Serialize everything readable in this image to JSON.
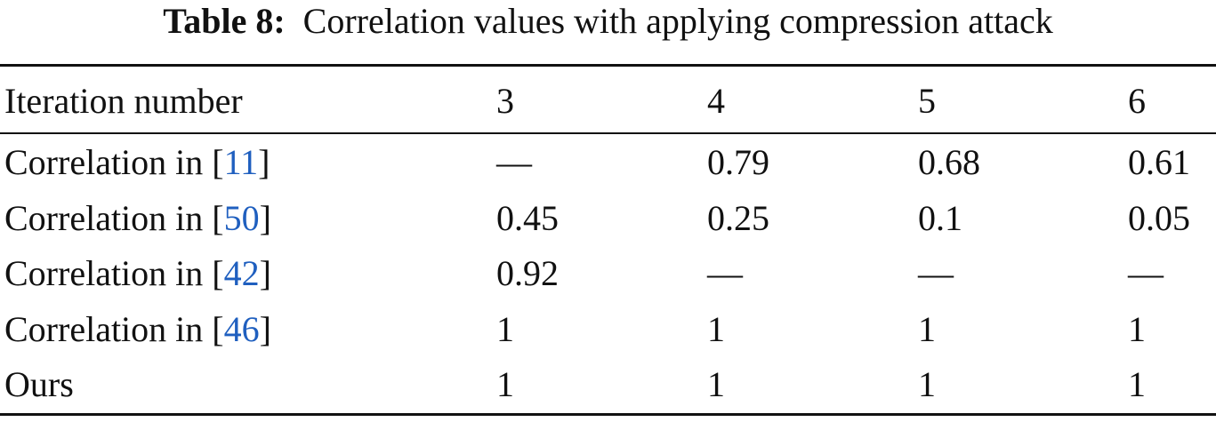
{
  "caption": {
    "label": "Table 8:",
    "text": "Correlation values with applying compression attack"
  },
  "table": {
    "header": [
      "Iteration number",
      "3",
      "4",
      "5",
      "6"
    ],
    "rows": [
      {
        "label": "Correlation in [",
        "ref": "11",
        "label_end": "]",
        "cells": [
          "—",
          "0.79",
          "0.68",
          "0.61"
        ]
      },
      {
        "label": "Correlation in [",
        "ref": "50",
        "label_end": "]",
        "cells": [
          "0.45",
          "0.25",
          "0.1",
          "0.05"
        ]
      },
      {
        "label": "Correlation in [",
        "ref": "42",
        "label_end": "]",
        "cells": [
          "0.92",
          "—",
          "—",
          "—"
        ]
      },
      {
        "label": "Correlation in [",
        "ref": "46",
        "label_end": "]",
        "cells": [
          "1",
          "1",
          "1",
          "1"
        ]
      },
      {
        "label": "Ours",
        "cells": [
          "1",
          "1",
          "1",
          "1"
        ]
      }
    ]
  }
}
